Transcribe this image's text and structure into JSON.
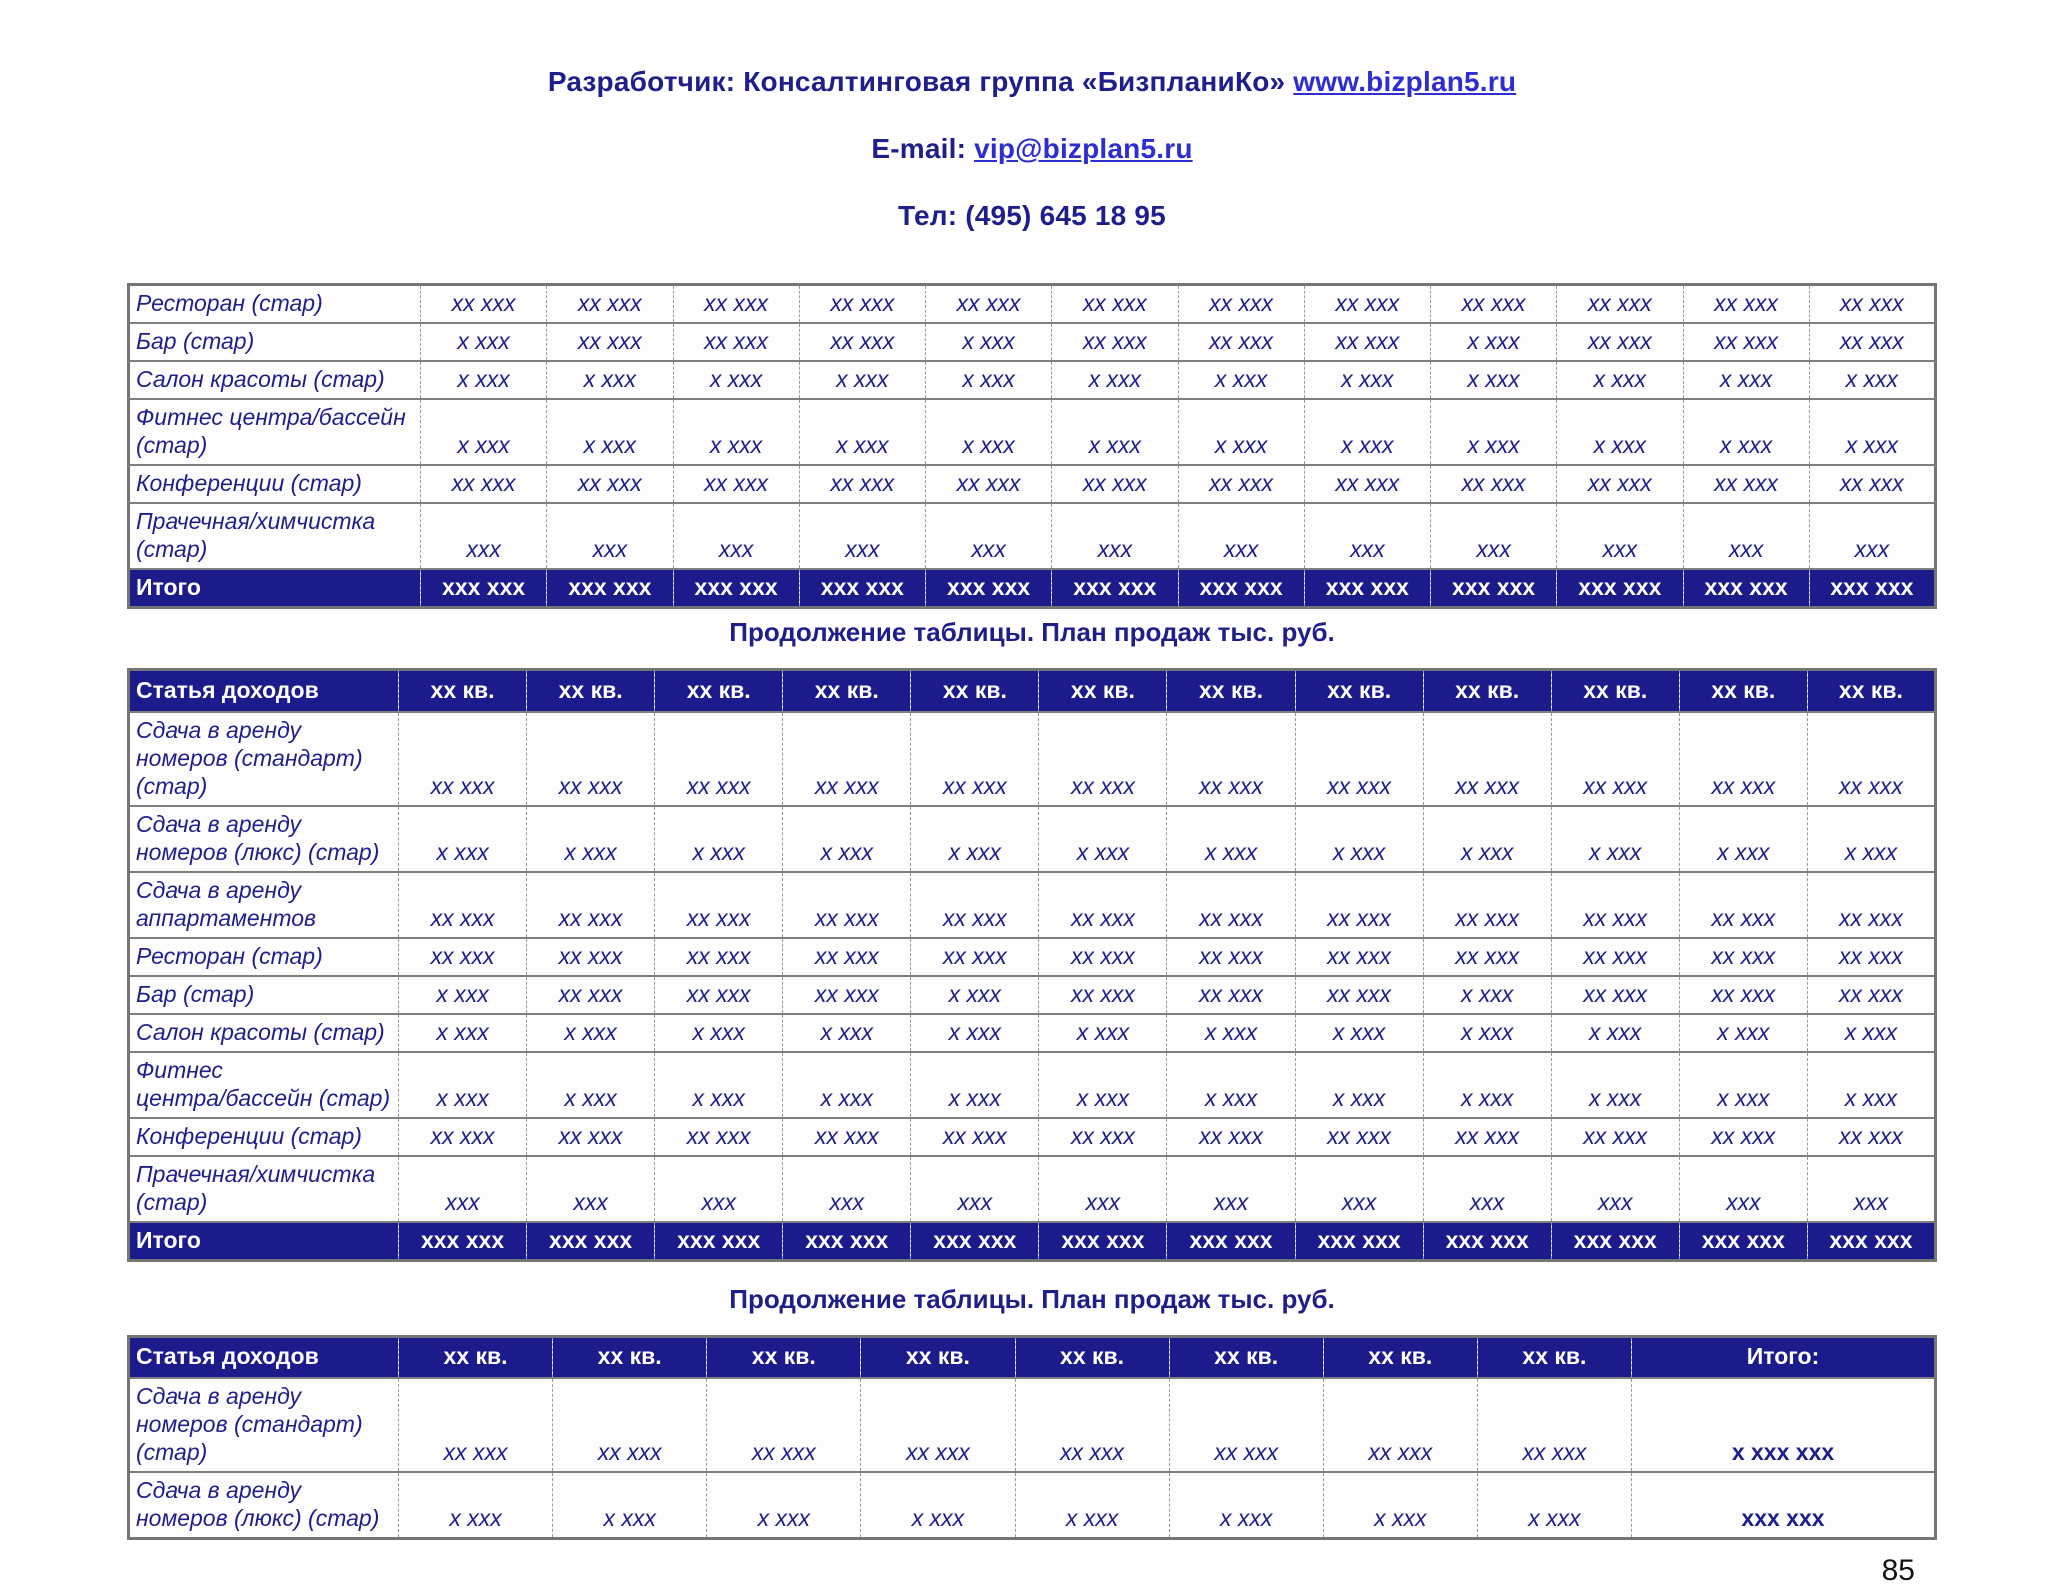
{
  "colors": {
    "navy": "#1F1F8C",
    "header_bg": "#1B1B8C",
    "link": "#2D2DD2"
  },
  "header": {
    "developer_prefix": "Разработчик: Консалтинговая группа «БизпланиКо» ",
    "developer_link": "www.bizplan5.ru",
    "email_prefix": "E-mail: ",
    "email_link": "vip@bizplan5.ru",
    "phone": "Тел: (495) 645 18 95"
  },
  "captions": {
    "continuation": "Продолжение таблицы. План продаж тыс. руб."
  },
  "page_number": "85",
  "table1": {
    "rows": [
      {
        "label": "Ресторан (стар)",
        "values": [
          "хх ххх",
          "хх ххх",
          "хх ххх",
          "хх ххх",
          "хх ххх",
          "хх ххх",
          "хх ххх",
          "хх ххх",
          "хх ххх",
          "хх ххх",
          "хх ххх",
          "хх ххх"
        ]
      },
      {
        "label": "Бар (стар)",
        "values": [
          "х ххх",
          "хх ххх",
          "хх ххх",
          "хх ххх",
          "х ххх",
          "хх ххх",
          "хх ххх",
          "хх ххх",
          "х ххх",
          "хх ххх",
          "хх ххх",
          "хх ххх"
        ]
      },
      {
        "label": "Салон красоты (стар)",
        "values": [
          "х ххх",
          "х ххх",
          "х ххх",
          "х ххх",
          "х ххх",
          "х ххх",
          "х ххх",
          "х ххх",
          "х ххх",
          "х ххх",
          "х ххх",
          "х ххх"
        ]
      },
      {
        "label": "Фитнес центра/бассейн\n(стар)",
        "values": [
          "х ххх",
          "х ххх",
          "х ххх",
          "х ххх",
          "х ххх",
          "х ххх",
          "х ххх",
          "х ххх",
          "х ххх",
          "х ххх",
          "х ххх",
          "х ххх"
        ]
      },
      {
        "label": "Конференции (стар)",
        "values": [
          "хх ххх",
          "хх ххх",
          "хх ххх",
          "хх ххх",
          "хх ххх",
          "хх ххх",
          "хх ххх",
          "хх ххх",
          "хх ххх",
          "хх ххх",
          "хх ххх",
          "хх ххх"
        ]
      },
      {
        "label": "Прачечная/химчистка\n(стар)",
        "values": [
          "ххх",
          "ххх",
          "ххх",
          "ххх",
          "ххх",
          "ххх",
          "ххх",
          "ххх",
          "ххх",
          "ххх",
          "ххх",
          "ххх"
        ]
      }
    ],
    "total": {
      "label": "Итого",
      "values": [
        "ххх ххх",
        "ххх ххх",
        "ххх ххх",
        "ххх ххх",
        "ххх ххх",
        "ххх ххх",
        "ххх ххх",
        "ххх ххх",
        "ххх ххх",
        "ххх ххх",
        "ххх ххх",
        "ххх ххх"
      ]
    }
  },
  "table2": {
    "header": {
      "label": "Статья доходов",
      "columns": [
        "хх кв.",
        "хх кв.",
        "хх кв.",
        "хх кв.",
        "хх кв.",
        "хх кв.",
        "хх кв.",
        "хх кв.",
        "хх кв.",
        "хх кв.",
        "хх кв.",
        "хх кв."
      ]
    },
    "rows": [
      {
        "label": "Сдача в аренду\nномеров (стандарт)\n(стар)",
        "values": [
          "хх ххх",
          "хх ххх",
          "хх ххх",
          "хх ххх",
          "хх ххх",
          "хх ххх",
          "хх ххх",
          "хх ххх",
          "хх ххх",
          "хх ххх",
          "хх ххх",
          "хх ххх"
        ]
      },
      {
        "label": "Сдача в аренду\nномеров (люкс) (стар)",
        "values": [
          "х ххх",
          "х ххх",
          "х ххх",
          "х ххх",
          "х ххх",
          "х ххх",
          "х ххх",
          "х ххх",
          "х ххх",
          "х ххх",
          "х ххх",
          "х ххх"
        ]
      },
      {
        "label": "Сдача в аренду\nаппартаментов",
        "values": [
          "хх ххх",
          "хх ххх",
          "хх ххх",
          "хх ххх",
          "хх ххх",
          "хх ххх",
          "хх ххх",
          "хх ххх",
          "хх ххх",
          "хх ххх",
          "хх ххх",
          "хх ххх"
        ]
      },
      {
        "label": "Ресторан (стар)",
        "values": [
          "хх ххх",
          "хх ххх",
          "хх ххх",
          "хх ххх",
          "хх ххх",
          "хх ххх",
          "хх ххх",
          "хх ххх",
          "хх ххх",
          "хх ххх",
          "хх ххх",
          "хх ххх"
        ]
      },
      {
        "label": "Бар (стар)",
        "values": [
          "х ххх",
          "хх ххх",
          "хх ххх",
          "хх ххх",
          "х ххх",
          "хх ххх",
          "хх ххх",
          "хх ххх",
          "х ххх",
          "хх ххх",
          "хх ххх",
          "хх ххх"
        ]
      },
      {
        "label": "Салон красоты (стар)",
        "values": [
          "х ххх",
          "х ххх",
          "х ххх",
          "х ххх",
          "х ххх",
          "х ххх",
          "х ххх",
          "х ххх",
          "х ххх",
          "х ххх",
          "х ххх",
          "х ххх"
        ]
      },
      {
        "label": "Фитнес\nцентра/бассейн (стар)",
        "values": [
          "х ххх",
          "х ххх",
          "х ххх",
          "х ххх",
          "х ххх",
          "х ххх",
          "х ххх",
          "х ххх",
          "х ххх",
          "х ххх",
          "х ххх",
          "х ххх"
        ]
      },
      {
        "label": "Конференции (стар)",
        "values": [
          "хх ххх",
          "хх ххх",
          "хх ххх",
          "хх ххх",
          "хх ххх",
          "хх ххх",
          "хх ххх",
          "хх ххх",
          "хх ххх",
          "хх ххх",
          "хх ххх",
          "хх ххх"
        ]
      },
      {
        "label": "Прачечная/химчистка\n(стар)",
        "values": [
          "ххх",
          "ххх",
          "ххх",
          "ххх",
          "ххх",
          "ххх",
          "ххх",
          "ххх",
          "ххх",
          "ххх",
          "ххх",
          "ххх"
        ]
      }
    ],
    "total": {
      "label": "Итого",
      "values": [
        "ххх ххх",
        "ххх ххх",
        "ххх ххх",
        "ххх ххх",
        "ххх ххх",
        "ххх ххх",
        "ххх ххх",
        "ххх ххх",
        "ххх ххх",
        "ххх ххх",
        "ххх ххх",
        "ххх ххх"
      ]
    }
  },
  "table3": {
    "header": {
      "label": "Статья доходов",
      "columns": [
        "хх кв.",
        "хх кв.",
        "хх кв.",
        "хх кв.",
        "хх кв.",
        "хх кв.",
        "хх кв.",
        "хх кв."
      ],
      "total_label": "Итого:"
    },
    "rows": [
      {
        "label": "Сдача в аренду\nномеров (стандарт)\n(стар)",
        "values": [
          "хх ххх",
          "хх ххх",
          "хх ххх",
          "хх ххх",
          "хх ххх",
          "хх ххх",
          "хх ххх",
          "хх ххх"
        ],
        "total": "х ххх ххх"
      },
      {
        "label": "Сдача в аренду\nномеров (люкс) (стар)",
        "values": [
          "х ххх",
          "х ххх",
          "х ххх",
          "х ххх",
          "х ххх",
          "х ххх",
          "х ххх",
          "х ххх"
        ],
        "total": "ххх ххх"
      }
    ]
  }
}
